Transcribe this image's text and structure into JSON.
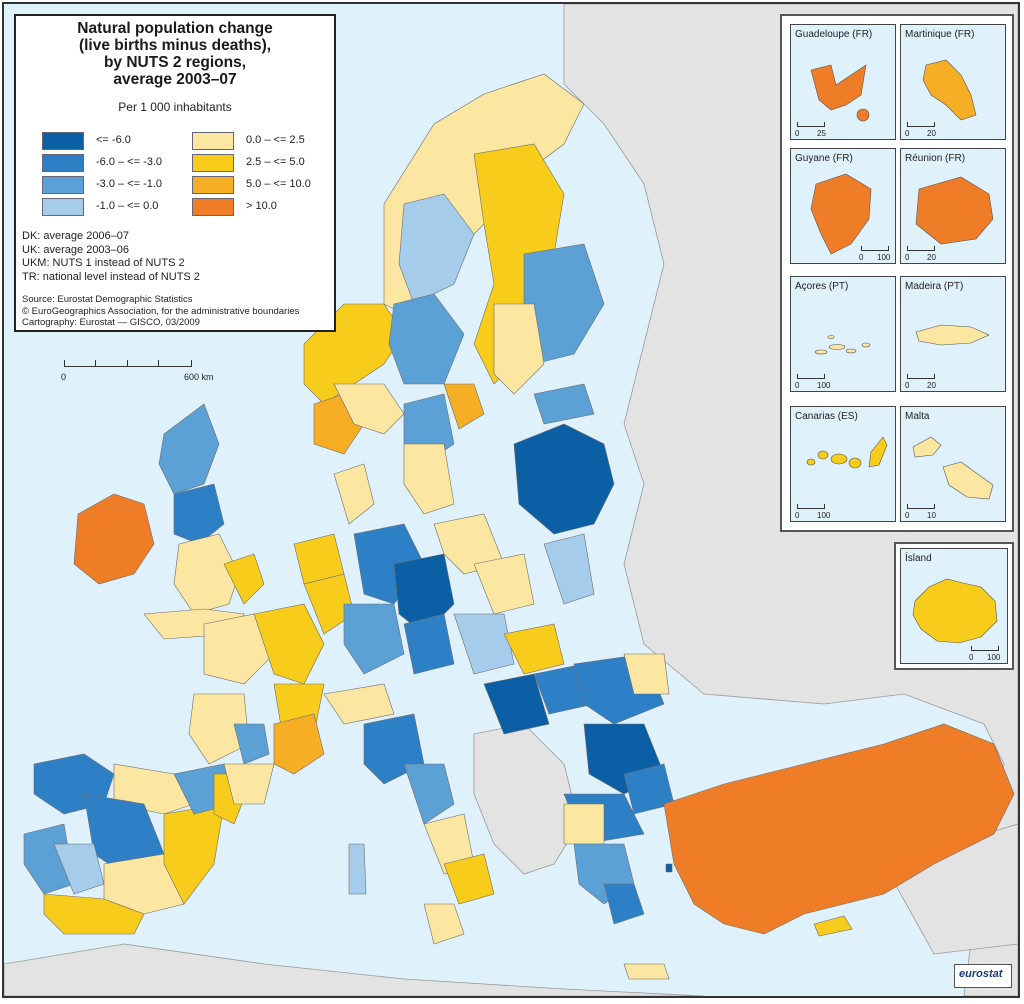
{
  "title_lines": [
    "Natural population change",
    "(live births minus deaths),",
    "by NUTS 2 regions,",
    "average 2003–07"
  ],
  "unit": "Per 1 000 inhabitants",
  "legend": [
    {
      "label": "<= -6.0",
      "color": "#0b5fa5"
    },
    {
      "label": "-6.0 – <= -3.0",
      "color": "#2e80c6"
    },
    {
      "label": "-3.0 – <= -1.0",
      "color": "#5ba1d6"
    },
    {
      "label": "-1.0 – <= 0.0",
      "color": "#a6cceb"
    },
    {
      "label": "0.0 – <= 2.5",
      "color": "#fbe6a2"
    },
    {
      "label": "2.5 – <= 5.0",
      "color": "#f8cc1b"
    },
    {
      "label": "5.0 – <= 10.0",
      "color": "#f6ae24"
    },
    {
      "label": "> 10.0",
      "color": "#ef7d28"
    }
  ],
  "notes": [
    "DK: average 2006–07",
    "UK: average 2003–06",
    "UKM: NUTS 1 instead of NUTS 2",
    "TR: national level instead of NUTS 2"
  ],
  "source": [
    "Source: Eurostat Demographic Statistics",
    "© EuroGeographics Association, for the administrative boundaries",
    "Cartography: Eurostat — GISCO, 03/2009"
  ],
  "scale": {
    "start": "0",
    "end": "600 km"
  },
  "insets": [
    {
      "name": "Guadeloupe (FR)",
      "scale": [
        "0",
        "25"
      ],
      "color": "#ef7d28"
    },
    {
      "name": "Martinique (FR)",
      "scale": [
        "0",
        "20"
      ],
      "color": "#f6ae24"
    },
    {
      "name": "Guyane (FR)",
      "scale": [
        "0",
        "100"
      ],
      "color": "#ef7d28"
    },
    {
      "name": "Réunion (FR)",
      "scale": [
        "0",
        "20"
      ],
      "color": "#ef7d28"
    },
    {
      "name": "Açores (PT)",
      "scale": [
        "0",
        "100"
      ],
      "color": "#fbe6a2"
    },
    {
      "name": "Madeira (PT)",
      "scale": [
        "0",
        "20"
      ],
      "color": "#fbe6a2"
    },
    {
      "name": "Canarias (ES)",
      "scale": [
        "0",
        "100"
      ],
      "color": "#f8cc1b"
    },
    {
      "name": "Malta",
      "scale": [
        "0",
        "10"
      ],
      "color": "#fbe6a2"
    }
  ],
  "island_inset": {
    "name": "Ísland",
    "scale": [
      "0",
      "100"
    ],
    "color": "#f8cc1b"
  },
  "logo": "eurostat",
  "colors": {
    "sea": "#dff1fa",
    "non_eu": "#e3e3e3",
    "border": "#6d6d6d"
  }
}
